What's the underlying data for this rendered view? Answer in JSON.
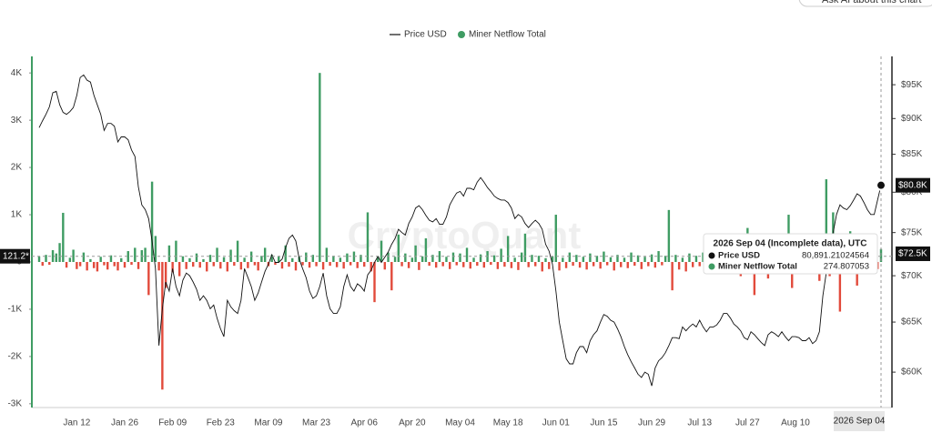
{
  "chart_data": {
    "type": "combo",
    "ask_button": "Ask AI about this chart",
    "watermark": "CryptoQuant",
    "categories": [
      null,
      null,
      null,
      null,
      null,
      null,
      null,
      null,
      null,
      null,
      null,
      "Jan 12",
      null,
      null,
      null,
      null,
      null,
      null,
      null,
      null,
      null,
      null,
      null,
      null,
      null,
      "Jan 26",
      null,
      null,
      null,
      null,
      null,
      null,
      null,
      null,
      null,
      null,
      null,
      null,
      null,
      "Feb 09",
      null,
      null,
      null,
      null,
      null,
      null,
      null,
      null,
      null,
      null,
      null,
      null,
      null,
      "Feb 23",
      null,
      null,
      null,
      null,
      null,
      null,
      null,
      null,
      null,
      null,
      null,
      null,
      null,
      "Mar 09",
      null,
      null,
      null,
      null,
      null,
      null,
      null,
      null,
      null,
      null,
      null,
      null,
      null,
      "Mar 23",
      null,
      null,
      null,
      null,
      null,
      null,
      null,
      null,
      null,
      null,
      null,
      null,
      null,
      "Apr 06",
      null,
      null,
      null,
      null,
      null,
      null,
      null,
      null,
      null,
      null,
      null,
      null,
      null,
      "Apr 20",
      null,
      null,
      null,
      null,
      null,
      null,
      null,
      null,
      null,
      null,
      null,
      null,
      null,
      "May 04",
      null,
      null,
      null,
      null,
      null,
      null,
      null,
      null,
      null,
      null,
      null,
      null,
      null,
      "May 18",
      null,
      null,
      null,
      null,
      null,
      null,
      null,
      null,
      null,
      null,
      null,
      null,
      null,
      "Jun 01",
      null,
      null,
      null,
      null,
      null,
      null,
      null,
      null,
      null,
      null,
      null,
      null,
      null,
      "Jun 15",
      null,
      null,
      null,
      null,
      null,
      null,
      null,
      null,
      null,
      null,
      null,
      null,
      null,
      "Jun 29",
      null,
      null,
      null,
      null,
      null,
      null,
      null,
      null,
      null,
      null,
      null,
      null,
      null,
      "Jul 13",
      null,
      null,
      null,
      null,
      null,
      null,
      null,
      null,
      null,
      null,
      null,
      null,
      null,
      "Jul 27",
      null,
      null,
      null,
      null,
      null,
      null,
      null,
      null,
      null,
      null,
      null,
      null,
      null,
      "Aug 10",
      null,
      null,
      null,
      null,
      null,
      null,
      null,
      null,
      null,
      null,
      null,
      null,
      null,
      null,
      null,
      null,
      null,
      null,
      null,
      null,
      null,
      null,
      null,
      null,
      null
    ],
    "series": [
      {
        "name": "Price USD",
        "type": "line",
        "axis": "y2",
        "color": "#111111",
        "last_label": "$80.8K",
        "values": [
          88700,
          89700,
          90600,
          91700,
          93800,
          94000,
          92000,
          90900,
          90600,
          91000,
          91600,
          93400,
          96100,
          96500,
          95700,
          95400,
          93400,
          92000,
          90600,
          88300,
          89300,
          89300,
          88900,
          86700,
          87400,
          87400,
          87000,
          85600,
          84700,
          80700,
          78400,
          77800,
          76700,
          74000,
          70800,
          62600,
          66400,
          69300,
          68300,
          70800,
          68800,
          67800,
          69500,
          70300,
          70000,
          69300,
          68500,
          67300,
          67800,
          67300,
          66400,
          66800,
          65400,
          64300,
          63500,
          67300,
          66600,
          66200,
          65900,
          67300,
          70800,
          69800,
          68800,
          67300,
          68100,
          69300,
          70500,
          71300,
          72400,
          71500,
          71500,
          71900,
          73200,
          74300,
          74700,
          74000,
          71900,
          70800,
          69800,
          68300,
          67500,
          67800,
          68800,
          70300,
          67800,
          66400,
          65900,
          65900,
          66600,
          68800,
          70100,
          68800,
          68300,
          69100,
          68800,
          68300,
          70100,
          70600,
          71500,
          72200,
          71500,
          72100,
          72700,
          73600,
          74300,
          75400,
          75000,
          74700,
          76100,
          76900,
          78000,
          78300,
          77800,
          77100,
          76500,
          76300,
          76700,
          76000,
          76000,
          76900,
          78400,
          79200,
          79900,
          80100,
          79500,
          80500,
          80500,
          80300,
          81300,
          81900,
          81300,
          80600,
          80100,
          79500,
          79200,
          79000,
          79000,
          78700,
          78000,
          76700,
          77200,
          76900,
          76100,
          75600,
          76100,
          76500,
          76100,
          75400,
          73600,
          72800,
          71300,
          68300,
          65000,
          63100,
          61300,
          60800,
          60800,
          61900,
          62500,
          62500,
          61900,
          63100,
          63700,
          64100,
          65000,
          65800,
          65600,
          65200,
          65000,
          64300,
          63500,
          62500,
          61700,
          61000,
          60400,
          59800,
          59500,
          60000,
          59800,
          58700,
          60400,
          61100,
          61400,
          61900,
          62600,
          63400,
          63400,
          63300,
          64500,
          64100,
          64500,
          64800,
          64500,
          65200,
          64500,
          64000,
          64500,
          64500,
          64700,
          65200,
          65900,
          65900,
          65400,
          64800,
          64500,
          64100,
          63400,
          63200,
          64000,
          63700,
          63300,
          62900,
          62600,
          63700,
          64000,
          63800,
          63500,
          64000,
          63500,
          63100,
          63500,
          63500,
          63400,
          63100,
          63100,
          63400,
          62800,
          63100,
          64000,
          67800,
          70300,
          72400,
          75000,
          77200,
          78400,
          78000,
          77800,
          78300,
          79000,
          79800,
          79500,
          78700,
          77800,
          77200,
          77200,
          79000,
          80891.21024564
        ]
      },
      {
        "name": "Miner Netflow Total",
        "type": "bar",
        "color": "#3f9c63",
        "negative_color": "#e24a3b",
        "values": [
          120,
          -80,
          150,
          -60,
          250,
          180,
          400,
          1040,
          -120,
          90,
          260,
          -150,
          -90,
          200,
          -180,
          60,
          -130,
          -200,
          110,
          -70,
          -160,
          140,
          -90,
          -180,
          80,
          -120,
          230,
          -60,
          300,
          -150,
          250,
          300,
          -700,
          1700,
          550,
          -180,
          -2700,
          -550,
          350,
          -220,
          450,
          -300,
          120,
          -150,
          80,
          -100,
          180,
          -120,
          60,
          -200,
          150,
          -90,
          300,
          -140,
          100,
          -200,
          260,
          -80,
          450,
          -160,
          90,
          -130,
          220,
          -70,
          -180,
          130,
          300,
          -90,
          150,
          -60,
          120,
          -140,
          350,
          -100,
          80,
          -180,
          110,
          -70,
          200,
          -120,
          150,
          -90,
          4000,
          -160,
          300,
          -80,
          130,
          -110,
          90,
          -140,
          180,
          -70,
          220,
          -130,
          150,
          -100,
          1050,
          -200,
          -850,
          120,
          450,
          -160,
          200,
          -600,
          110,
          580,
          -90,
          180,
          -130,
          90,
          350,
          -170,
          120,
          500,
          -80,
          150,
          -120,
          230,
          -90,
          110,
          -150,
          200,
          -70,
          180,
          -110,
          300,
          -140,
          90,
          -80,
          160,
          -120,
          230,
          -60,
          140,
          -150,
          280,
          -100,
          550,
          -130,
          90,
          -170,
          200,
          600,
          -110,
          150,
          -90,
          130,
          -200,
          80,
          -150,
          120,
          1000,
          -180,
          90,
          -130,
          200,
          -80,
          150,
          -120,
          110,
          -160,
          180,
          -90,
          130,
          -140,
          220,
          -70,
          100,
          -180,
          150,
          -110,
          90,
          -130,
          200,
          -80,
          140,
          -150,
          110,
          -90,
          160,
          -120,
          230,
          -70,
          130,
          1100,
          -600,
          150,
          -160,
          90,
          -200,
          180,
          -110,
          130,
          -90,
          200,
          -140,
          110,
          -80,
          150,
          -170,
          120,
          -250,
          90,
          -130,
          180,
          -300,
          100,
          720,
          -150,
          -700,
          160,
          -200,
          110,
          -350,
          140,
          -90,
          200,
          -160,
          120,
          1000,
          -550,
          150,
          -120,
          180,
          -250,
          130,
          -90,
          200,
          -400,
          150,
          1750,
          -300,
          1050,
          200,
          -1050,
          300,
          -200,
          650,
          -150,
          -500,
          250,
          -180,
          300,
          -120,
          200,
          -150,
          274.807053
        ]
      }
    ],
    "ylim": [
      -3080,
      4350
    ],
    "yticks": [
      {
        "value": 4000,
        "label": "4K"
      },
      {
        "value": 3000,
        "label": "3K"
      },
      {
        "value": 2000,
        "label": "2K"
      },
      {
        "value": 1000,
        "label": "1K"
      },
      0,
      {
        "value": -1000,
        "label": "-1K"
      },
      {
        "value": -2000,
        "label": "-2K"
      },
      {
        "value": -3000,
        "label": "-3K"
      }
    ],
    "y2lim": [
      56700,
      99400
    ],
    "y2log": true,
    "y2ticks": [
      {
        "value": 95000,
        "label": "$95K"
      },
      {
        "value": 90000,
        "label": "$90K"
      },
      {
        "value": 85000,
        "label": "$85K"
      },
      {
        "value": 80000,
        "label": "$80K"
      },
      {
        "value": 75000,
        "label": "$75K"
      },
      {
        "value": 70000,
        "label": "$70K"
      },
      {
        "value": 65000,
        "label": "$65K"
      },
      {
        "value": 60000,
        "label": "$60K"
      }
    ],
    "grid": false,
    "legend": "top",
    "crosshair": {
      "x_label": "2026 Sep 04",
      "value": 121.2,
      "label": "121.2*",
      "y2_value": 72500,
      "y2_label": "$72.5K"
    },
    "tooltip": {
      "title": "2026 Sep 04 (Incomplete data), UTC",
      "price_label": "80,891.21024564"
    }
  }
}
